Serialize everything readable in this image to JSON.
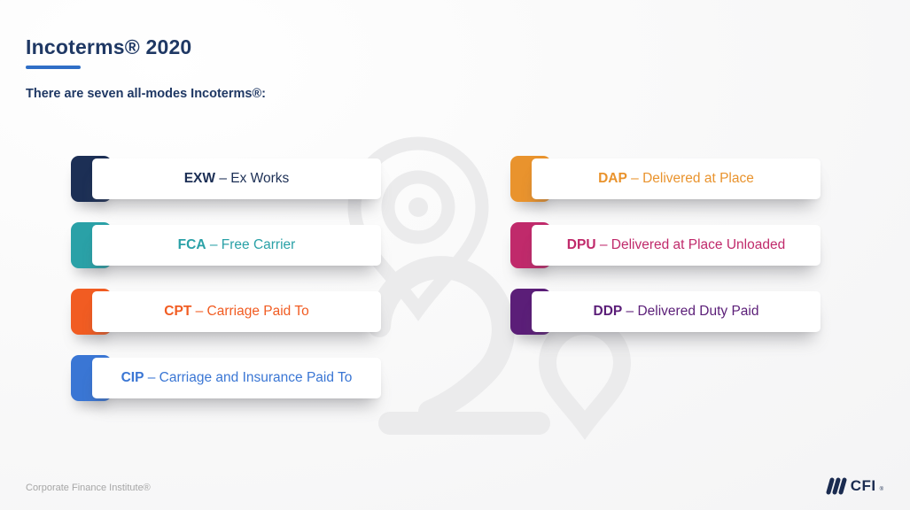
{
  "header": {
    "title": "Incoterms® 2020",
    "subtitle": "There are seven all-modes Incoterms®:"
  },
  "separator": "–",
  "incoterms": [
    {
      "code": "EXW",
      "name": "Ex Works",
      "color": "#1c2f55",
      "column": "left"
    },
    {
      "code": "FCA",
      "name": "Free Carrier",
      "color": "#2aa1a7",
      "column": "left"
    },
    {
      "code": "CPT",
      "name": "Carriage Paid To",
      "color": "#f15c22",
      "column": "left"
    },
    {
      "code": "CIP",
      "name": "Carriage and Insurance Paid To",
      "color": "#3a76d4",
      "column": "left"
    },
    {
      "code": "DAP",
      "name": "Delivered at Place",
      "color": "#e9932d",
      "column": "right"
    },
    {
      "code": "DPU",
      "name": "Delivered at Place Unloaded",
      "color": "#c02a6b",
      "column": "right"
    },
    {
      "code": "DDP",
      "name": "Delivered Duty Paid",
      "color": "#5b1e78",
      "column": "right"
    }
  ],
  "footer": {
    "attribution": "Corporate Finance Institute®",
    "logo_text": "CFI",
    "logo_mark": "®"
  },
  "theme": {
    "title_color": "#1f3864",
    "accent_underline": "#2f6ec6",
    "background": "#f6f6f7",
    "watermark_color": "#ebebec",
    "logo_color": "#1a2b50",
    "attribution_color": "#a6a6a6"
  }
}
